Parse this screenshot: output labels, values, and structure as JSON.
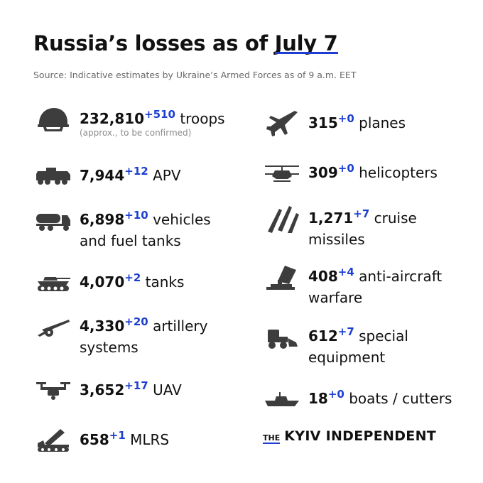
{
  "header": {
    "title_prefix": "Russia’s losses",
    "title_mid": " as of ",
    "title_date": "July 7",
    "source": "Source: Indicative estimates by Ukraine’s Armed Forces as of 9 a.m. EET"
  },
  "left": [
    {
      "icon": "helmet-icon",
      "value": "232,810",
      "delta": "+510",
      "label": "troops",
      "sub": "(approx., to be confirmed)"
    },
    {
      "icon": "apv-icon",
      "value": "7,944",
      "delta": "+12",
      "label": "APV"
    },
    {
      "icon": "fuel-truck-icon",
      "value": "6,898",
      "delta": "+10",
      "label": "vehicles",
      "label2": "and fuel tanks"
    },
    {
      "icon": "tank-icon",
      "value": "4,070",
      "delta": "+2",
      "label": "tanks"
    },
    {
      "icon": "artillery-icon",
      "value": "4,330",
      "delta": "+20",
      "label": "artillery",
      "label2": "systems"
    },
    {
      "icon": "drone-icon",
      "value": "3,652",
      "delta": "+17",
      "label": "UAV"
    },
    {
      "icon": "mlrs-icon",
      "value": "658",
      "delta": "+1",
      "label": "MLRS"
    }
  ],
  "right": [
    {
      "icon": "plane-icon",
      "value": "315",
      "delta": "+0",
      "label": "planes"
    },
    {
      "icon": "helicopter-icon",
      "value": "309",
      "delta": "+0",
      "label": "helicopters"
    },
    {
      "icon": "missile-icon",
      "value": "1,271",
      "delta": "+7",
      "label": "cruise",
      "label2": "missiles"
    },
    {
      "icon": "anti-aircraft-icon",
      "value": "408",
      "delta": "+4",
      "label": "anti-aircraft",
      "label2": "warfare"
    },
    {
      "icon": "loader-icon",
      "value": "612",
      "delta": "+7",
      "label": "special",
      "label2": "equipment"
    },
    {
      "icon": "boat-icon",
      "value": "18",
      "delta": "+0",
      "label": "boats / cutters"
    }
  ],
  "logo": {
    "the": "THE",
    "name": "KYIV INDEPENDENT"
  },
  "colors": {
    "accent": "#1c3fd1",
    "text": "#111111",
    "icon": "#3d3d3d",
    "muted": "#6a6a6a"
  }
}
